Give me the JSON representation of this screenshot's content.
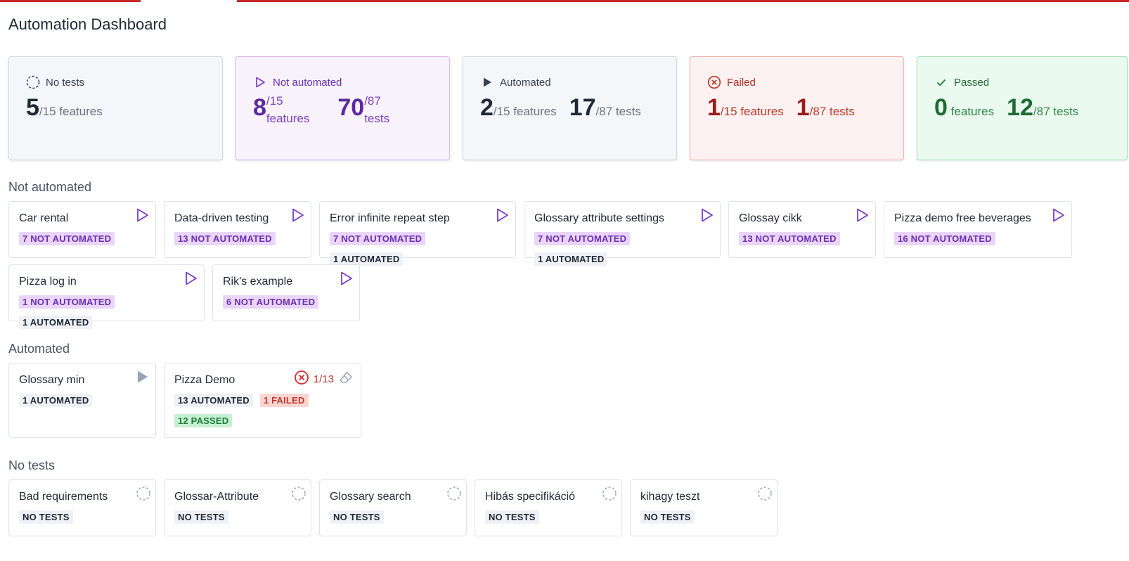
{
  "page": {
    "title": "Automation Dashboard"
  },
  "colors": {
    "accent_red": "#c62828",
    "purple": "#7b3fc4",
    "red": "#c0392b",
    "green": "#1e7c3b",
    "slate": "#1f2937"
  },
  "summary": {
    "no_tests": {
      "label": "No tests",
      "features_count": "5",
      "features_suffix": "/15 features"
    },
    "not_automated": {
      "label": "Not automated",
      "features_count": "8",
      "features_suffix": "/15",
      "features_word": "features",
      "tests_count": "70",
      "tests_suffix": "/87",
      "tests_word": "tests"
    },
    "automated": {
      "label": "Automated",
      "features_count": "2",
      "features_suffix": "/15 features",
      "tests_count": "17",
      "tests_suffix": "/87 tests"
    },
    "failed": {
      "label": "Failed",
      "features_count": "1",
      "features_suffix": "/15 features",
      "tests_count": "1",
      "tests_suffix": "/87 tests"
    },
    "passed": {
      "label": "Passed",
      "features_count": "0",
      "features_suffix": " features",
      "tests_count": "12",
      "tests_suffix": "/87 tests"
    }
  },
  "sections": {
    "not_automated": {
      "title": "Not automated",
      "cards": [
        {
          "title": "Car rental",
          "badges": [
            "7 NOT AUTOMATED"
          ]
        },
        {
          "title": "Data-driven testing",
          "badges": [
            "13 NOT AUTOMATED"
          ]
        },
        {
          "title": "Error infinite repeat step",
          "badges": [
            "7 NOT AUTOMATED",
            "1 AUTOMATED"
          ]
        },
        {
          "title": "Glossary attribute settings",
          "badges": [
            "7 NOT AUTOMATED",
            "1 AUTOMATED"
          ]
        },
        {
          "title": "Glossay cikk",
          "badges": [
            "13 NOT AUTOMATED"
          ]
        },
        {
          "title": "Pizza demo free beverages",
          "badges": [
            "16 NOT AUTOMATED"
          ]
        },
        {
          "title": "Pizza log in",
          "badges": [
            "1 NOT AUTOMATED",
            "1 AUTOMATED"
          ]
        },
        {
          "title": "Rik's example",
          "badges": [
            "6 NOT AUTOMATED"
          ]
        }
      ]
    },
    "automated": {
      "title": "Automated",
      "cards": [
        {
          "title": "Glossary min",
          "badges": [
            "1 AUTOMATED"
          ]
        },
        {
          "title": "Pizza Demo",
          "fail_ratio": "1/13",
          "badges": [
            "13 AUTOMATED",
            "1 FAILED",
            "12 PASSED"
          ]
        }
      ]
    },
    "no_tests": {
      "title": "No tests",
      "cards": [
        {
          "title": "Bad requirements",
          "badges": [
            "NO TESTS"
          ]
        },
        {
          "title": "Glossar-Attribute",
          "badges": [
            "NO TESTS"
          ]
        },
        {
          "title": "Glossary search",
          "badges": [
            "NO TESTS"
          ]
        },
        {
          "title": "Hibás specifikáció",
          "badges": [
            "NO TESTS"
          ]
        },
        {
          "title": "kihagy teszt",
          "badges": [
            "NO TESTS"
          ]
        }
      ]
    }
  }
}
